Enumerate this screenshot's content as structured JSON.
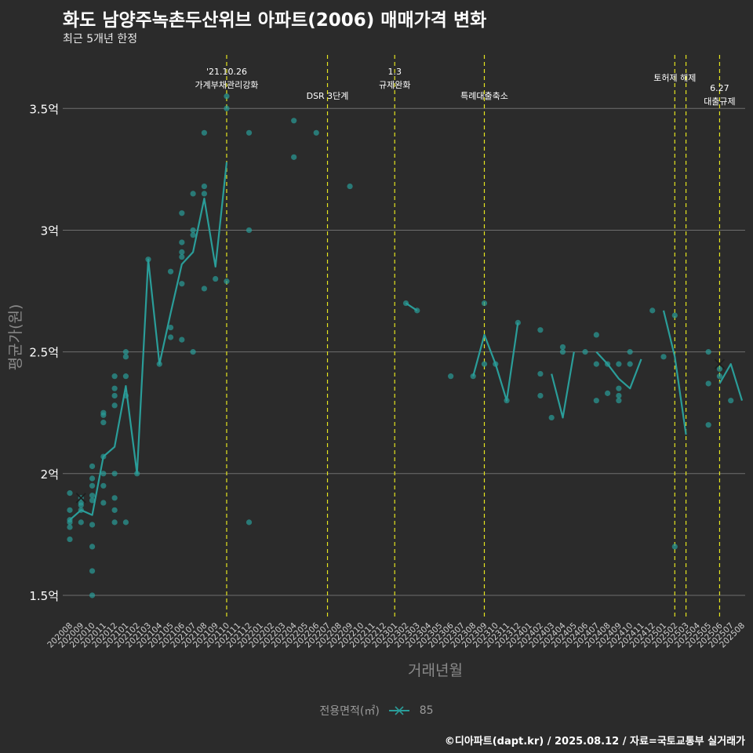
{
  "title": "화도 남양주녹촌두산위브 아파트(2006) 매매가격 변화",
  "subtitle": "최근 5개년 한정",
  "caption": "©디아파트(dapt.kr) / 2025.08.12 / 자료=국토교통부 실거래가",
  "legend": {
    "title": "전용면적(㎡)",
    "item": "85"
  },
  "colors": {
    "background": "#2b2b2b",
    "series": "#2a9d99",
    "grid": "#6e6e6e",
    "event_line": "#e5e51f",
    "text": "#ffffff"
  },
  "chart_data": {
    "type": "line",
    "xlabel": "거래년월",
    "ylabel": "평균가(원)",
    "ylim": [
      1.4,
      3.72
    ],
    "yticks": [
      1.5,
      2.0,
      2.5,
      3.0,
      3.5
    ],
    "ytick_labels": [
      "1.5억",
      "2억",
      "2.5억",
      "3억",
      "3.5억"
    ],
    "categories": [
      "202008",
      "202009",
      "202010",
      "202011",
      "202012",
      "202101",
      "202102",
      "202103",
      "202104",
      "202105",
      "202106",
      "202107",
      "202108",
      "202109",
      "202110",
      "202111",
      "202112",
      "202201",
      "202202",
      "202203",
      "202204",
      "202205",
      "202206",
      "202207",
      "202208",
      "202209",
      "202210",
      "202211",
      "202212",
      "202301",
      "202302",
      "202303",
      "202304",
      "202305",
      "202306",
      "202307",
      "202308",
      "202309",
      "202310",
      "202311",
      "202312",
      "202401",
      "202402",
      "202403",
      "202404",
      "202405",
      "202406",
      "202407",
      "202408",
      "202409",
      "202410",
      "202411",
      "202412",
      "202501",
      "202502",
      "202503",
      "202504",
      "202505",
      "202506",
      "202507",
      "202508"
    ],
    "series": [
      {
        "name": "85",
        "line": [
          [
            "202008",
            1.81
          ],
          [
            "202009",
            1.85
          ],
          [
            "202010",
            1.83
          ],
          [
            "202011",
            2.07
          ],
          [
            "202012",
            2.11
          ],
          [
            "202101",
            2.36
          ],
          [
            "202102",
            2.0
          ],
          [
            "202103",
            2.88
          ],
          [
            "202104",
            2.45
          ],
          [
            "202105",
            2.66
          ],
          [
            "202106",
            2.86
          ],
          [
            "202107",
            2.91
          ],
          [
            "202108",
            3.13
          ],
          [
            "202109",
            2.85
          ],
          [
            "202110",
            3.28
          ],
          null,
          [
            "202302",
            2.7
          ],
          [
            "202303",
            2.67
          ],
          null,
          [
            "202308",
            2.4
          ],
          [
            "202309",
            2.57
          ],
          [
            "202310",
            2.45
          ],
          [
            "202311",
            2.3
          ],
          [
            "202312",
            2.62
          ],
          null,
          [
            "202403",
            2.41
          ],
          [
            "202404",
            2.23
          ],
          [
            "202405",
            2.5
          ],
          null,
          [
            "202407",
            2.5
          ],
          [
            "202408",
            2.45
          ],
          [
            "202409",
            2.39
          ],
          [
            "202410",
            2.35
          ],
          [
            "202411",
            2.47
          ],
          null,
          [
            "202501",
            2.67
          ],
          [
            "202502",
            2.48
          ],
          [
            "202503",
            2.16
          ],
          null,
          [
            "202506",
            2.37
          ],
          [
            "202507",
            2.45
          ],
          [
            "202508",
            2.3
          ]
        ],
        "points": [
          [
            "202008",
            1.92
          ],
          [
            "202008",
            1.85
          ],
          [
            "202008",
            1.81
          ],
          [
            "202008",
            1.8
          ],
          [
            "202008",
            1.78
          ],
          [
            "202008",
            1.73
          ],
          [
            "202009",
            1.9
          ],
          [
            "202009",
            1.88
          ],
          [
            "202009",
            1.87
          ],
          [
            "202009",
            1.85
          ],
          [
            "202009",
            1.8
          ],
          [
            "202010",
            2.03
          ],
          [
            "202010",
            1.98
          ],
          [
            "202010",
            1.95
          ],
          [
            "202010",
            1.91
          ],
          [
            "202010",
            1.89
          ],
          [
            "202010",
            1.79
          ],
          [
            "202010",
            1.7
          ],
          [
            "202010",
            1.6
          ],
          [
            "202010",
            1.5
          ],
          [
            "202011",
            2.25
          ],
          [
            "202011",
            2.24
          ],
          [
            "202011",
            2.21
          ],
          [
            "202011",
            2.07
          ],
          [
            "202011",
            2.0
          ],
          [
            "202011",
            1.95
          ],
          [
            "202011",
            1.88
          ],
          [
            "202012",
            2.4
          ],
          [
            "202012",
            2.35
          ],
          [
            "202012",
            2.32
          ],
          [
            "202012",
            2.28
          ],
          [
            "202012",
            2.0
          ],
          [
            "202012",
            1.9
          ],
          [
            "202012",
            1.85
          ],
          [
            "202012",
            1.8
          ],
          [
            "202101",
            2.5
          ],
          [
            "202101",
            2.48
          ],
          [
            "202101",
            2.4
          ],
          [
            "202101",
            2.32
          ],
          [
            "202101",
            1.8
          ],
          [
            "202102",
            2.0
          ],
          [
            "202103",
            2.88
          ],
          [
            "202104",
            2.45
          ],
          [
            "202105",
            2.83
          ],
          [
            "202105",
            2.6
          ],
          [
            "202105",
            2.56
          ],
          [
            "202106",
            3.07
          ],
          [
            "202106",
            2.95
          ],
          [
            "202106",
            2.91
          ],
          [
            "202106",
            2.89
          ],
          [
            "202106",
            2.78
          ],
          [
            "202106",
            2.55
          ],
          [
            "202107",
            3.15
          ],
          [
            "202107",
            3.0
          ],
          [
            "202107",
            2.98
          ],
          [
            "202107",
            2.5
          ],
          [
            "202108",
            3.4
          ],
          [
            "202108",
            3.18
          ],
          [
            "202108",
            3.15
          ],
          [
            "202108",
            2.76
          ],
          [
            "202109",
            2.8
          ],
          [
            "202110",
            3.55
          ],
          [
            "202110",
            3.5
          ],
          [
            "202110",
            2.79
          ],
          [
            "202112",
            3.4
          ],
          [
            "202112",
            3.0
          ],
          [
            "202112",
            1.8
          ],
          [
            "202204",
            3.45
          ],
          [
            "202204",
            3.3
          ],
          [
            "202206",
            3.4
          ],
          [
            "202209",
            3.18
          ],
          [
            "202302",
            2.7
          ],
          [
            "202303",
            2.67
          ],
          [
            "202306",
            2.4
          ],
          [
            "202308",
            2.4
          ],
          [
            "202309",
            2.7
          ],
          [
            "202309",
            2.45
          ],
          [
            "202310",
            2.45
          ],
          [
            "202311",
            2.3
          ],
          [
            "202312",
            2.62
          ],
          [
            "202402",
            2.59
          ],
          [
            "202402",
            2.41
          ],
          [
            "202402",
            2.32
          ],
          [
            "202403",
            2.23
          ],
          [
            "202404",
            2.52
          ],
          [
            "202404",
            2.5
          ],
          [
            "202406",
            2.5
          ],
          [
            "202407",
            2.57
          ],
          [
            "202407",
            2.45
          ],
          [
            "202407",
            2.3
          ],
          [
            "202408",
            2.45
          ],
          [
            "202408",
            2.33
          ],
          [
            "202409",
            2.45
          ],
          [
            "202409",
            2.35
          ],
          [
            "202409",
            2.32
          ],
          [
            "202409",
            2.3
          ],
          [
            "202410",
            2.5
          ],
          [
            "202410",
            2.45
          ],
          [
            "202412",
            2.67
          ],
          [
            "202501",
            2.48
          ],
          [
            "202502",
            2.65
          ],
          [
            "202502",
            1.7
          ],
          [
            "202505",
            2.5
          ],
          [
            "202505",
            2.37
          ],
          [
            "202505",
            2.2
          ],
          [
            "202506",
            2.43
          ],
          [
            "202506",
            2.4
          ],
          [
            "202507",
            2.3
          ]
        ],
        "markers_x": [
          [
            "202009",
            1.9
          ],
          [
            "202506",
            2.45
          ]
        ]
      }
    ],
    "events": [
      {
        "x": "202110",
        "lines": [
          "'21.10.26",
          "가계부채관리강화"
        ]
      },
      {
        "x": "202207",
        "lines": [
          "DSR 3단계"
        ]
      },
      {
        "x": "202301",
        "lines": [
          "1.3",
          "규제완화"
        ]
      },
      {
        "x": "202309",
        "lines": [
          "특례대출축소"
        ]
      },
      {
        "x": "202502",
        "lines": [
          "토허제 해제"
        ]
      },
      {
        "x": "202503",
        "lines": []
      },
      {
        "x": "202506",
        "lines": [
          "6.27",
          "대출규제"
        ]
      }
    ]
  }
}
